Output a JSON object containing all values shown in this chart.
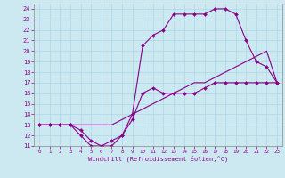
{
  "xlabel": "Windchill (Refroidissement éolien,°C)",
  "bg_color": "#cce8f0",
  "line_color": "#880088",
  "grid_color": "#aad8e8",
  "xlim": [
    -0.5,
    23.5
  ],
  "ylim": [
    11,
    24.5
  ],
  "xticks": [
    0,
    1,
    2,
    3,
    4,
    5,
    6,
    7,
    8,
    9,
    10,
    11,
    12,
    13,
    14,
    15,
    16,
    17,
    18,
    19,
    20,
    21,
    22,
    23
  ],
  "yticks": [
    11,
    12,
    13,
    14,
    15,
    16,
    17,
    18,
    19,
    20,
    21,
    22,
    23,
    24
  ],
  "series1_x": [
    0,
    1,
    2,
    3,
    4,
    5,
    6,
    7,
    8,
    9,
    10,
    11,
    12,
    13,
    14,
    15,
    16,
    17,
    18,
    19,
    20,
    21,
    22,
    23
  ],
  "series1_y": [
    13,
    13,
    13,
    13,
    12,
    11,
    11,
    11.5,
    12,
    13.5,
    16,
    16.5,
    16,
    16,
    16,
    16,
    16.5,
    17,
    17,
    17,
    17,
    17,
    17,
    17
  ],
  "series2_x": [
    0,
    1,
    2,
    3,
    4,
    5,
    6,
    7,
    8,
    9,
    10,
    11,
    12,
    13,
    14,
    15,
    16,
    17,
    18,
    19,
    20,
    21,
    22,
    23
  ],
  "series2_y": [
    13,
    13,
    13,
    13,
    13,
    13,
    13,
    13,
    13.5,
    14,
    14.5,
    15,
    15.5,
    16,
    16.5,
    17,
    17,
    17.5,
    18,
    18.5,
    19,
    19.5,
    20,
    17
  ],
  "series3_x": [
    0,
    1,
    2,
    3,
    4,
    5,
    6,
    7,
    8,
    9,
    10,
    11,
    12,
    13,
    14,
    15,
    16,
    17,
    18,
    19,
    20,
    21,
    22,
    23
  ],
  "series3_y": [
    13,
    13,
    13,
    13,
    12.5,
    11.5,
    11,
    11,
    12,
    14,
    20.5,
    21.5,
    22,
    23.5,
    23.5,
    23.5,
    23.5,
    24,
    24,
    23.5,
    21,
    19,
    18.5,
    17
  ]
}
